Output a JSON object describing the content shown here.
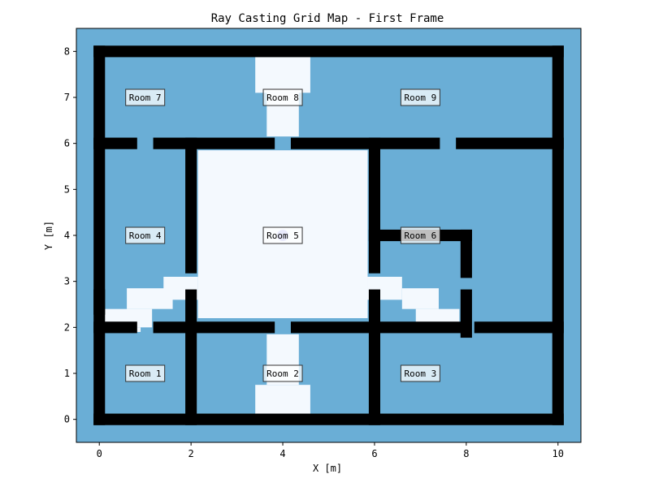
{
  "chart_data": {
    "type": "heatmap",
    "title": "Ray Casting Grid Map - First Frame",
    "xlabel": "X [m]",
    "ylabel": "Y [m]",
    "xlim": [
      -0.5,
      10.5
    ],
    "ylim": [
      -0.5,
      8.5
    ],
    "xticks": [
      0,
      2,
      4,
      6,
      8,
      10
    ],
    "yticks": [
      0,
      1,
      2,
      3,
      4,
      5,
      6,
      7,
      8
    ],
    "grid": false,
    "cell_size": 0.25,
    "colors": {
      "unknown": "#6aaed6",
      "free": "#f4f9fe",
      "occupied": "#000000",
      "robot": "#9aa0f0"
    },
    "occupied_walls": [
      [
        0,
        0,
        10,
        0
      ],
      [
        0,
        8,
        10,
        8
      ],
      [
        0,
        0,
        0,
        8
      ],
      [
        10,
        0,
        10,
        8
      ],
      [
        0,
        6,
        0.7,
        6
      ],
      [
        1.3,
        6,
        3.7,
        6
      ],
      [
        4.3,
        6,
        7.3,
        6
      ],
      [
        7.9,
        6,
        10,
        6
      ],
      [
        0,
        2,
        0.7,
        2
      ],
      [
        1.3,
        2,
        3.7,
        2
      ],
      [
        4.3,
        2,
        7.9,
        2
      ],
      [
        8.3,
        2,
        10,
        2
      ],
      [
        2,
        0,
        2,
        2.7
      ],
      [
        2,
        3.3,
        2,
        6
      ],
      [
        6,
        0,
        6,
        2.7
      ],
      [
        6,
        3.3,
        6,
        6
      ],
      [
        6,
        4,
        8,
        4
      ],
      [
        8,
        3.2,
        8,
        4
      ],
      [
        8,
        1.9,
        8,
        2.7
      ],
      [
        0,
        2.4,
        0,
        2.7
      ]
    ],
    "free_regions": [
      [
        2.15,
        2.2,
        5.85,
        5.85
      ],
      [
        3.4,
        7.1,
        4.6,
        8.0
      ],
      [
        3.65,
        6.15,
        4.35,
        7.1
      ],
      [
        3.4,
        0.0,
        4.6,
        0.75
      ],
      [
        3.65,
        0.75,
        4.35,
        1.85
      ],
      [
        1.4,
        2.6,
        2.15,
        3.1
      ],
      [
        0.6,
        2.4,
        1.6,
        2.85
      ],
      [
        0.0,
        2.0,
        1.15,
        2.4
      ],
      [
        0.7,
        1.9,
        0.9,
        2.0
      ],
      [
        5.85,
        2.6,
        6.6,
        3.1
      ],
      [
        6.6,
        2.4,
        7.4,
        2.85
      ],
      [
        6.9,
        2.0,
        7.85,
        2.4
      ]
    ],
    "robot": {
      "x": 4.0,
      "y": 4.0
    },
    "rooms": [
      {
        "label": "Room 1",
        "x": 1,
        "y": 1
      },
      {
        "label": "Room 2",
        "x": 4,
        "y": 1
      },
      {
        "label": "Room 3",
        "x": 7,
        "y": 1
      },
      {
        "label": "Room 4",
        "x": 1,
        "y": 4
      },
      {
        "label": "Room 5",
        "x": 4,
        "y": 4
      },
      {
        "label": "Room 6",
        "x": 7,
        "y": 4
      },
      {
        "label": "Room 7",
        "x": 1,
        "y": 7
      },
      {
        "label": "Room 8",
        "x": 4,
        "y": 7
      },
      {
        "label": "Room 9",
        "x": 7,
        "y": 7
      }
    ]
  }
}
